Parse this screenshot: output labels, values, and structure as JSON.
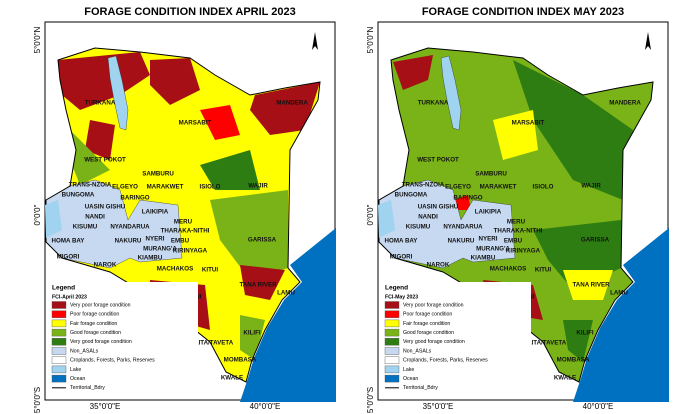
{
  "panels": [
    {
      "title": "FORAGE CONDITION INDEX  APRIL 2023",
      "lat_labels": [
        "5°0'0\"N",
        "0°0'0\"",
        "5°0'0\"S"
      ],
      "lon_labels": [
        "35°0'0\"E",
        "40°0'0\"E"
      ],
      "legend": {
        "title": "Legend",
        "subtitle": "FCI-April 2023"
      }
    },
    {
      "title": "FORAGE CONDITION INDEX MAY 2023",
      "lat_labels": [
        "5°0'0\"N",
        "0°0'0\"",
        "5°0'0\"S"
      ],
      "lon_labels": [
        "35°0'0\"E",
        "40°0'0\"E"
      ],
      "legend": {
        "title": "Legend",
        "subtitle": "FCI-May 2023"
      }
    }
  ],
  "legend_items": [
    {
      "label": "Very poor forage condition",
      "fill": "#a50f15"
    },
    {
      "label": "Poor forage condition",
      "fill": "#ff0000"
    },
    {
      "label": "Fair forage condition",
      "fill": "#ffff00"
    },
    {
      "label": "Good forage condition",
      "fill": "#7ab317"
    },
    {
      "label": "Very good forage condition",
      "fill": "#2e7d12"
    },
    {
      "label": "Non_ASALs",
      "fill": "#c6d9f1"
    },
    {
      "label": "Croplands, Forests, Parks, Reserves",
      "fill": "#ffffff"
    },
    {
      "label": "Lake",
      "fill": "#9fd3ef"
    },
    {
      "label": "Ocean",
      "fill": "#0070c0"
    },
    {
      "label": "Territorial_Bdry",
      "stroke": "#000000"
    }
  ],
  "counties": [
    "TURKANA",
    "MARSABIT",
    "MANDERA",
    "WAJIR",
    "WEST POKOT",
    "SAMBURU",
    "TRANS-NZOIA",
    "BUNGOMA",
    "ELGEYO",
    "MARAKWET",
    "ISIOLO",
    "BARINGO",
    "UASIN GISHU",
    "LAIKIPIA",
    "NANDI",
    "MERU",
    "KISUMU",
    "NYANDARUA",
    "THARAKA-NITHI",
    "EMBU",
    "NYERI",
    "NAKURU",
    "KIRINYAGA",
    "GARISSA",
    "HOMA BAY",
    "MIGORI",
    "NAROK",
    "KIAMBU",
    "MURANG'A",
    "MACHAKOS",
    "KITUI",
    "TANA RIVER",
    "KAJIADO",
    "MAKUENI",
    "LAMU",
    "KILIFI",
    "TAITA/TAVETA",
    "MOMBASA",
    "KWALE"
  ]
}
